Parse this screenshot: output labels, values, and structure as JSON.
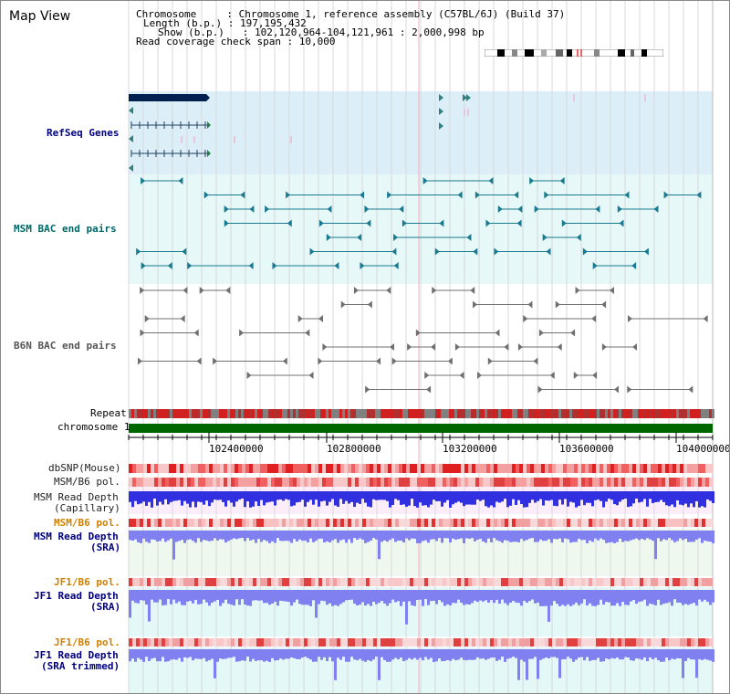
{
  "view": {
    "title": "Map View"
  },
  "header": {
    "line1": "Chromosome     : Chromosome 1, reference assembly (C57BL/6J) (Build 37)",
    "line2": "Length (b.p.) : 197,195,432",
    "line3": "Show (b.p.)   : 102,120,964-104,121,961 : 2,000,998 bp",
    "line4": "Read coverage check span : 10,000"
  },
  "tracks": {
    "refseq": "RefSeq Genes",
    "msm_bac": "MSM BAC end pairs",
    "b6n_bac": "B6N BAC end pairs",
    "repeat": "Repeat",
    "chromosome": "chromosome 1",
    "dbsnp": "dbSNP(Mouse)",
    "msm_b6_pol": "MSM/B6 pol.",
    "msm_depth_cap_1": "MSM Read Depth",
    "msm_depth_cap_2": "(Capillary)",
    "msm_b6_pol_sra": "MSM/B6 pol.",
    "msm_depth_sra_1": "MSM Read Depth",
    "msm_depth_sra_2": "(SRA)",
    "jf1_b6_pol_1": "JF1/B6 pol.",
    "jf1_depth_sra_1": "JF1 Read Depth",
    "jf1_depth_sra_2": "(SRA)",
    "jf1_b6_pol_2": "JF1/B6 pol.",
    "jf1_depth_trim_1": "JF1 Read Depth",
    "jf1_depth_trim_2": "(SRA trimmed)"
  },
  "axis": {
    "ticks": [
      "102400000",
      "102800000",
      "103200000",
      "103600000",
      "104000000"
    ]
  },
  "colors": {
    "refseq_bg": "#dceef8",
    "msm_bg": "#e6f8f8",
    "label_navy": "#000080",
    "label_teal": "#006868",
    "label_orange": "#d08000",
    "chromosome_bar": "#006600",
    "depth_blue": "#3030e0",
    "depth_lavender": "#8080f0"
  }
}
